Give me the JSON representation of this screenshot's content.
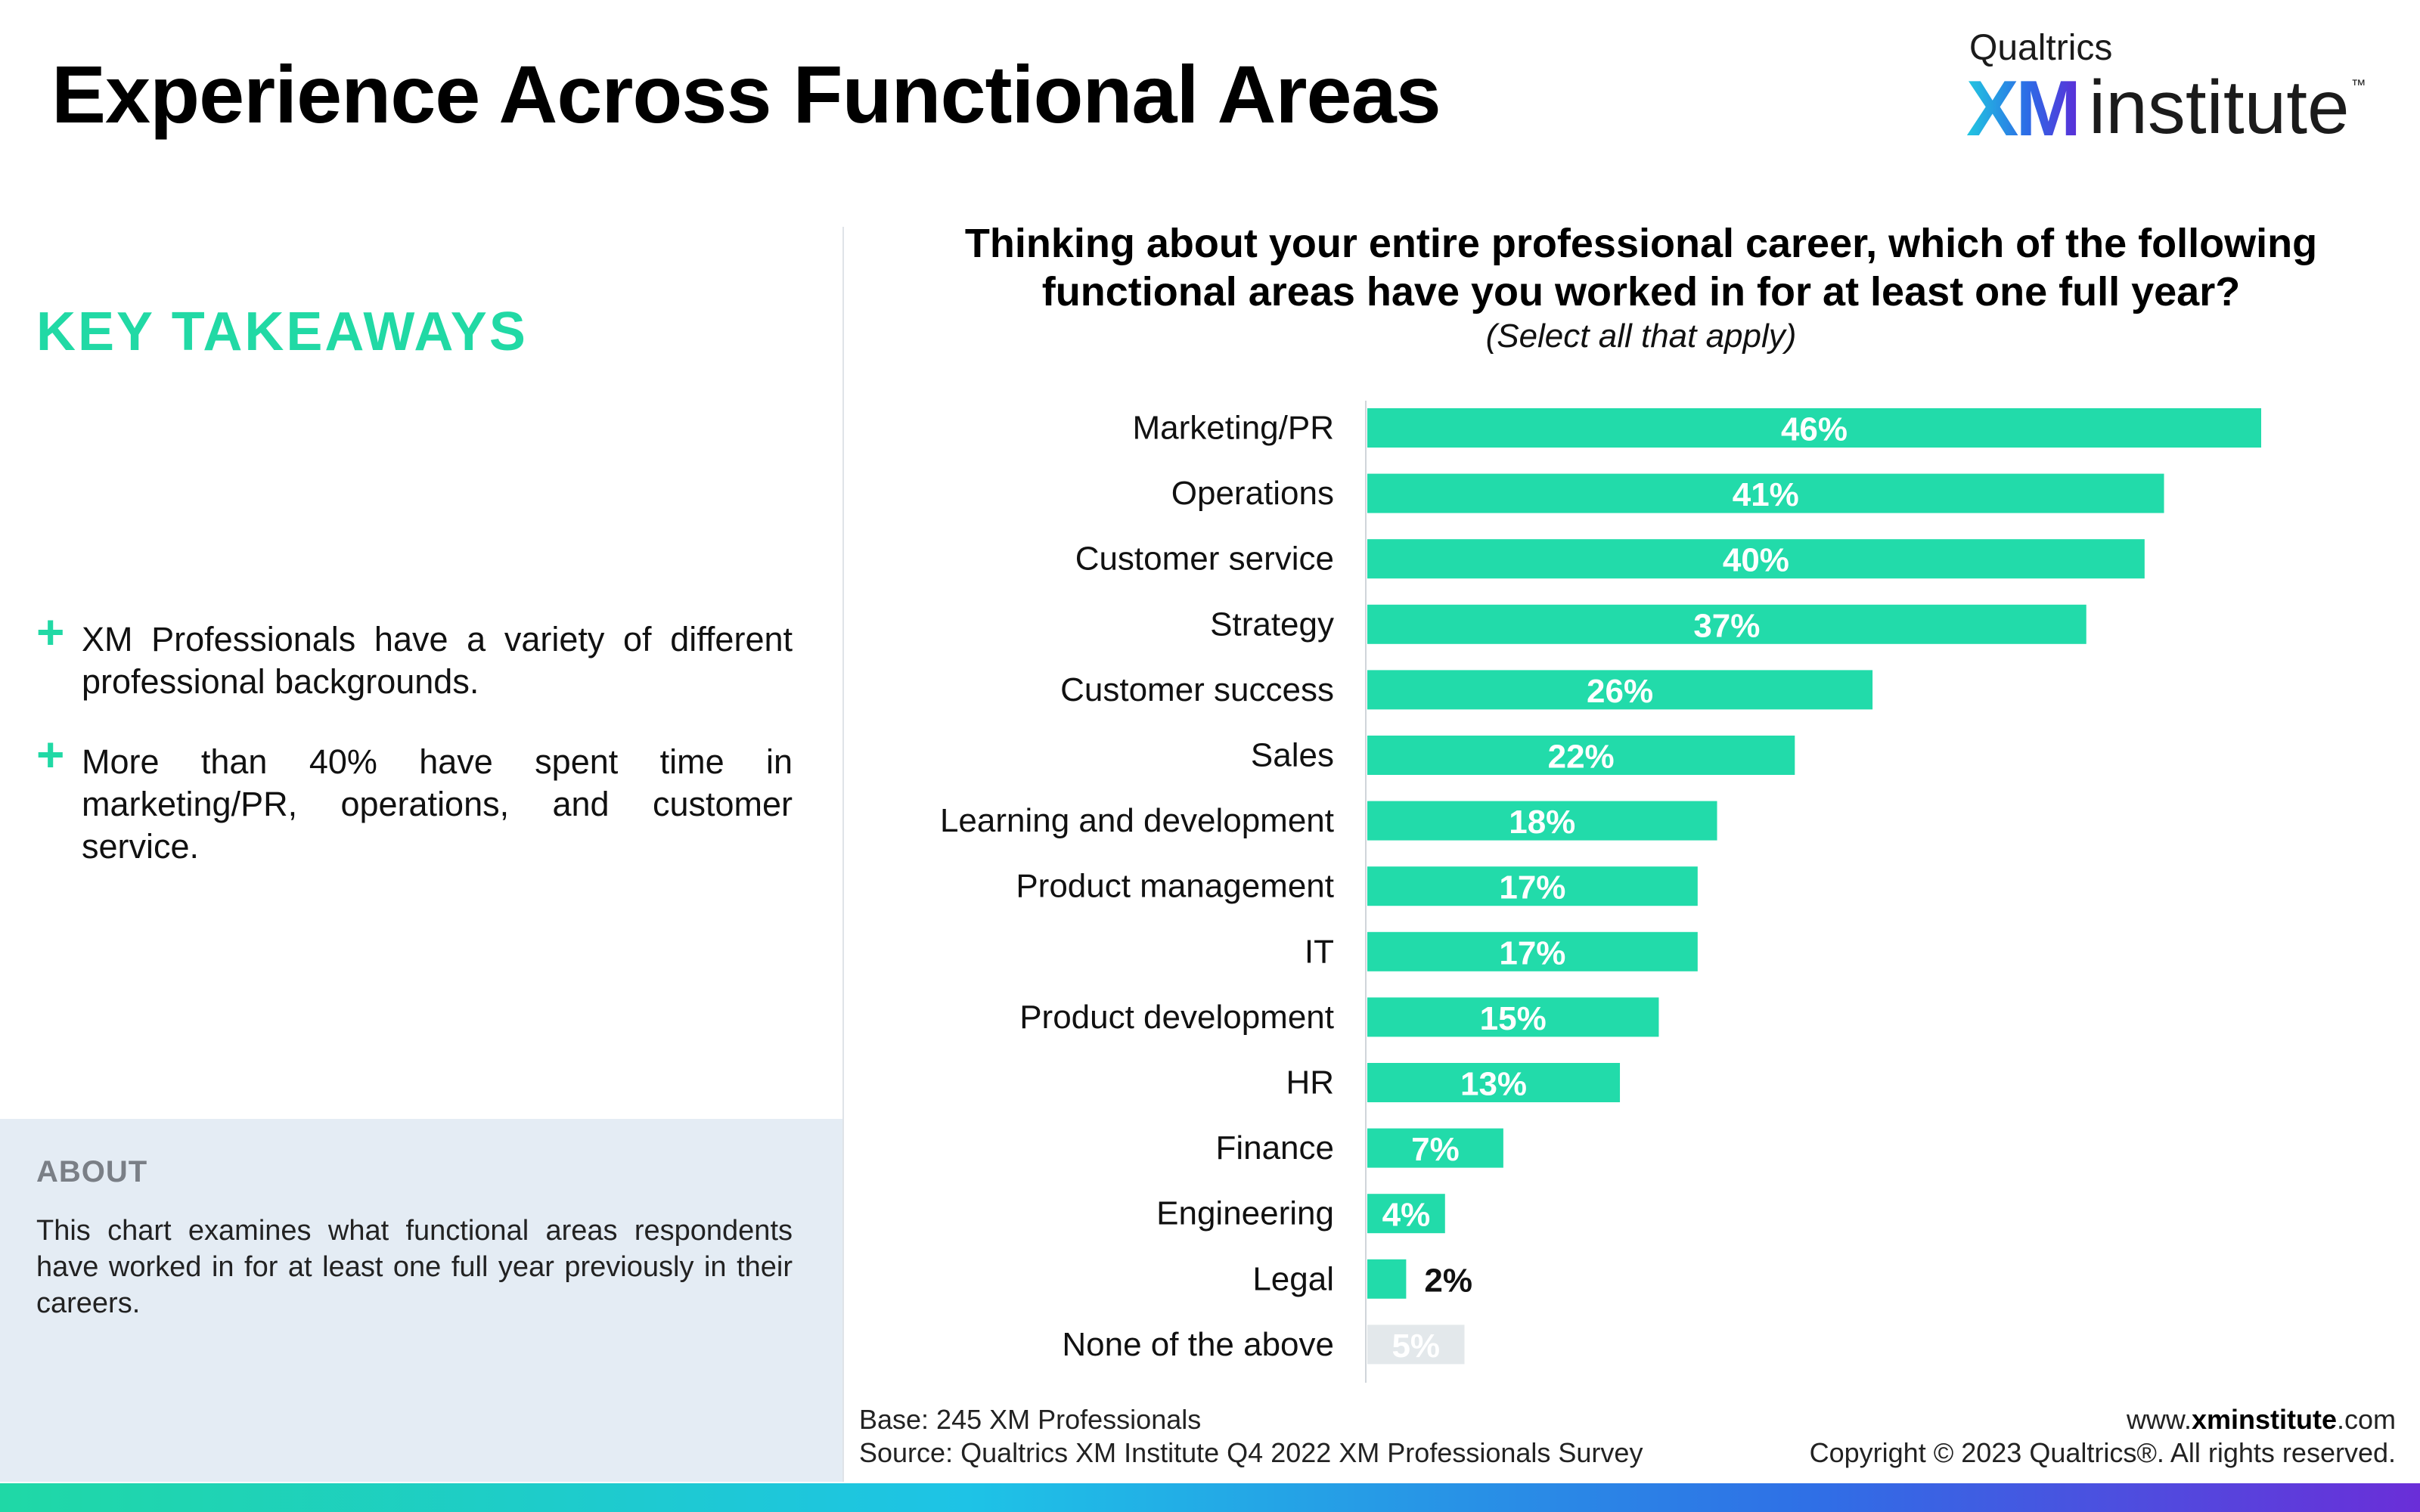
{
  "page": {
    "title": "Experience Across Functional Areas"
  },
  "logo": {
    "company": "Qualtrics",
    "brand_xm": "XM",
    "brand_word": "institute",
    "trademark": "™"
  },
  "sidebar": {
    "heading": "KEY TAKEAWAYS",
    "takeaways": [
      "XM Professionals have a variety of different professional backgrounds.",
      "More than 40% have spent time in marketing/PR, operations, and customer service."
    ],
    "about_heading": "ABOUT",
    "about_text": "This chart examines what functional areas respondents have worked in for at least  one full year previously in their careers."
  },
  "chart_data": {
    "type": "bar",
    "orientation": "horizontal",
    "title_lines": [
      "Thinking about your entire professional career, which of the following",
      "functional areas have you worked in for at least one full year?"
    ],
    "subtitle": "(Select all that apply)",
    "categories": [
      "Marketing/PR",
      "Operations",
      "Customer service",
      "Strategy",
      "Customer success",
      "Sales",
      "Learning and development",
      "Product management",
      "IT",
      "Product development",
      "HR",
      "Finance",
      "Engineering",
      "Legal",
      "None of the above"
    ],
    "values": [
      46,
      41,
      40,
      37,
      26,
      22,
      18,
      17,
      17,
      15,
      13,
      7,
      4,
      2,
      5
    ],
    "value_labels": [
      "46%",
      "41%",
      "40%",
      "37%",
      "26%",
      "22%",
      "18%",
      "17%",
      "17%",
      "15%",
      "13%",
      "7%",
      "4%",
      "2%",
      "5%"
    ],
    "colors": {
      "bar": "#22dbaa",
      "none_bar": "#e3e8eb",
      "label_inside": "#ffffff",
      "label_outside": "#111111"
    },
    "highlight_last_gray": true,
    "xlim": [
      0,
      50
    ],
    "grid": false,
    "legend": "none"
  },
  "footer": {
    "base": "Base: 245 XM Professionals",
    "source": "Source: Qualtrics XM Institute Q4 2022 XM Professionals Survey",
    "url_prefix": "www.",
    "url_bold": "xminstitute",
    "url_suffix": ".com",
    "copyright": "Copyright © 2023 Qualtrics®. All rights reserved."
  }
}
